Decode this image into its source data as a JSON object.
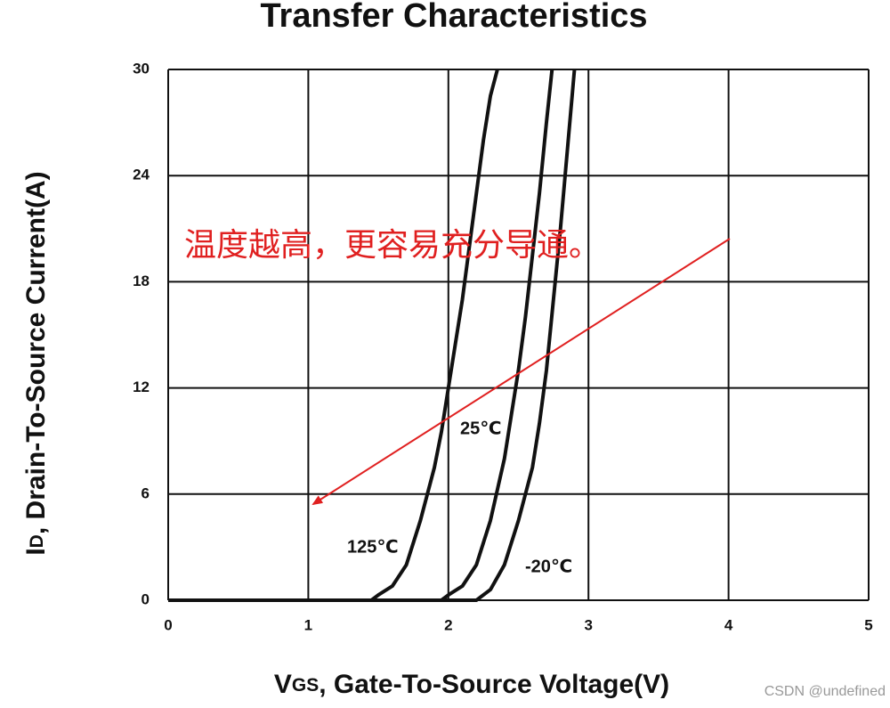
{
  "chart_data": {
    "type": "line",
    "title": "Transfer Characteristics",
    "x_label_parts": [
      "V",
      "GS",
      ", Gate-To-Source Voltage(V)"
    ],
    "y_label_parts": [
      "I",
      "D",
      ", Drain-To-Source Current(A)"
    ],
    "xlim": [
      0,
      5
    ],
    "xticks": [
      0,
      1,
      2,
      3,
      4,
      5
    ],
    "ylim": [
      0,
      30
    ],
    "yticks": [
      0,
      6,
      12,
      18,
      24,
      30
    ],
    "grid": true,
    "series": [
      {
        "name": "125℃",
        "color": "#111111",
        "x": [
          0,
          1.45,
          1.5,
          1.6,
          1.7,
          1.8,
          1.9,
          1.95,
          2.0,
          2.05,
          2.1,
          2.15,
          2.2,
          2.25,
          2.3,
          2.35
        ],
        "values": [
          0,
          0,
          0.3,
          0.8,
          2,
          4.5,
          7.5,
          9.5,
          12,
          14.5,
          17,
          20,
          23,
          26,
          28.5,
          30
        ]
      },
      {
        "name": "25℃",
        "color": "#111111",
        "x": [
          0,
          1.95,
          2.0,
          2.1,
          2.2,
          2.3,
          2.4,
          2.45,
          2.5,
          2.55,
          2.6,
          2.65,
          2.7,
          2.74
        ],
        "values": [
          0,
          0,
          0.3,
          0.8,
          2,
          4.5,
          8,
          10.5,
          13,
          16,
          19.5,
          23,
          27,
          30
        ]
      },
      {
        "name": "-20℃",
        "color": "#111111",
        "x": [
          0,
          2.2,
          2.3,
          2.4,
          2.5,
          2.6,
          2.65,
          2.7,
          2.75,
          2.8,
          2.85,
          2.9
        ],
        "values": [
          0,
          0,
          0.6,
          2,
          4.5,
          7.5,
          10,
          13,
          17,
          21,
          25.5,
          30
        ]
      }
    ],
    "annotation": "温度越高，更容易充分导通。",
    "watermark": "CSDN @undefined"
  }
}
